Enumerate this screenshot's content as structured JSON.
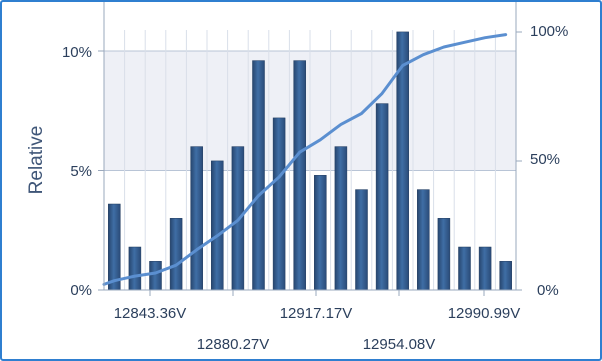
{
  "chart_data": {
    "type": "bar",
    "title": "",
    "ylabel": "Relative",
    "y2label": "",
    "xlabel": "",
    "x_tick_labels_upper": [
      "12843.36V",
      "12917.17V",
      "12990.99V"
    ],
    "x_tick_labels_lower": [
      "12880.27V",
      "12954.08V"
    ],
    "y_ticks": [
      "0%",
      "5%",
      "10%"
    ],
    "y2_ticks": [
      "0%",
      "50%",
      "100%"
    ],
    "ylim": [
      0,
      10
    ],
    "y2lim": [
      0,
      100
    ],
    "grid": true,
    "shaded_band_range": [
      5,
      10
    ],
    "colors": {
      "bar": "#3f6ea5",
      "cumulative_line": "#5b8fd0",
      "band": "#eef0f6",
      "frame": "#2f7fd0",
      "axis": "#9aa8bc"
    },
    "series": [
      {
        "type": "bar",
        "values": [
          3.6,
          1.8,
          1.2,
          3.0,
          6.0,
          5.4,
          6.0,
          9.6,
          7.2,
          9.6,
          4.8,
          6.0,
          4.2,
          7.8,
          10.8,
          4.2,
          3.0,
          1.8,
          1.8,
          1.2
        ]
      },
      {
        "type": "line",
        "axis": "right",
        "values": [
          3.6,
          5.4,
          6.6,
          9.6,
          15.6,
          21.0,
          27.0,
          36.6,
          43.8,
          53.4,
          58.2,
          64.2,
          68.4,
          76.2,
          87.0,
          91.2,
          94.2,
          96.0,
          97.8,
          99.0
        ]
      }
    ]
  }
}
